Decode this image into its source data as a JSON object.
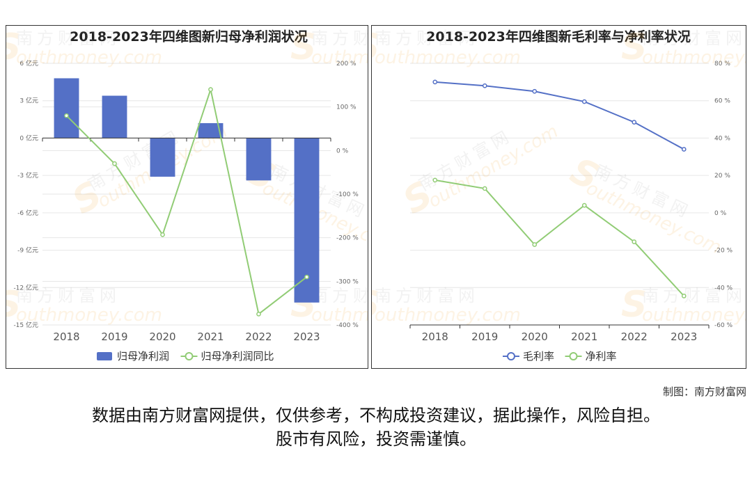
{
  "watermark": {
    "cn": "南方财富网",
    "en": "outhmoney.com",
    "logo": "S"
  },
  "credit": "制图：南方财富网",
  "disclaimer": {
    "line1": "数据由南方财富网提供，仅供参考，不构成投资建议，据此操作，风险自担。",
    "line2": "股市有风险，投资需谨慎。"
  },
  "colors": {
    "blue": "#5470c6",
    "green": "#91cc75",
    "grid": "#e6e6e6",
    "axis": "#333333",
    "tick": "#666666"
  },
  "chart_data": [
    {
      "type": "bar+line",
      "title": "2018-2023年四维图新归母净利润状况",
      "categories": [
        "2018",
        "2019",
        "2020",
        "2021",
        "2022",
        "2023"
      ],
      "left_axis": {
        "ylim": [
          -15,
          6
        ],
        "ticks": [
          6,
          3,
          0,
          -3,
          -6,
          -9,
          -12,
          -15
        ],
        "tick_labels": [
          "6 亿元",
          "3 亿元",
          "0 亿元",
          "-3 亿元",
          "-6 亿元",
          "-9 亿元",
          "-12 亿元",
          "-15 亿元"
        ]
      },
      "right_axis": {
        "ylim": [
          -400,
          200
        ],
        "ticks": [
          200,
          100,
          0,
          -100,
          -200,
          -300,
          -400
        ],
        "tick_labels": [
          "200 %",
          "100 %",
          "0 %",
          "-100 %",
          "-200 %",
          "-300 %",
          "-400 %"
        ]
      },
      "grid": true,
      "legend_position": "bottom",
      "series": [
        {
          "name": "归母净利润",
          "type": "bar",
          "axis": "left",
          "values": [
            4.8,
            3.4,
            -3.1,
            1.2,
            -3.4,
            -13.2
          ]
        },
        {
          "name": "归母净利润同比",
          "type": "line",
          "axis": "right",
          "values": [
            80,
            -30,
            -193,
            140,
            -375,
            -290
          ]
        }
      ]
    },
    {
      "type": "line",
      "title": "2018-2023年四维图新毛利率与净利率状况",
      "categories": [
        "2018",
        "2019",
        "2020",
        "2021",
        "2022",
        "2023"
      ],
      "right_axis": {
        "ylim": [
          -60,
          80
        ],
        "ticks": [
          80,
          60,
          40,
          20,
          0,
          -20,
          -40,
          -60
        ],
        "tick_labels": [
          "80 %",
          "60 %",
          "40 %",
          "20 %",
          "0 %",
          "-20 %",
          "-40 %",
          "-60 %"
        ]
      },
      "grid": true,
      "legend_position": "bottom",
      "series": [
        {
          "name": "毛利率",
          "values": [
            70.0,
            68.0,
            65.0,
            59.5,
            48.5,
            34.0
          ]
        },
        {
          "name": "净利率",
          "values": [
            17.5,
            13.0,
            -17.0,
            4.0,
            -15.5,
            -44.5
          ]
        }
      ]
    }
  ]
}
